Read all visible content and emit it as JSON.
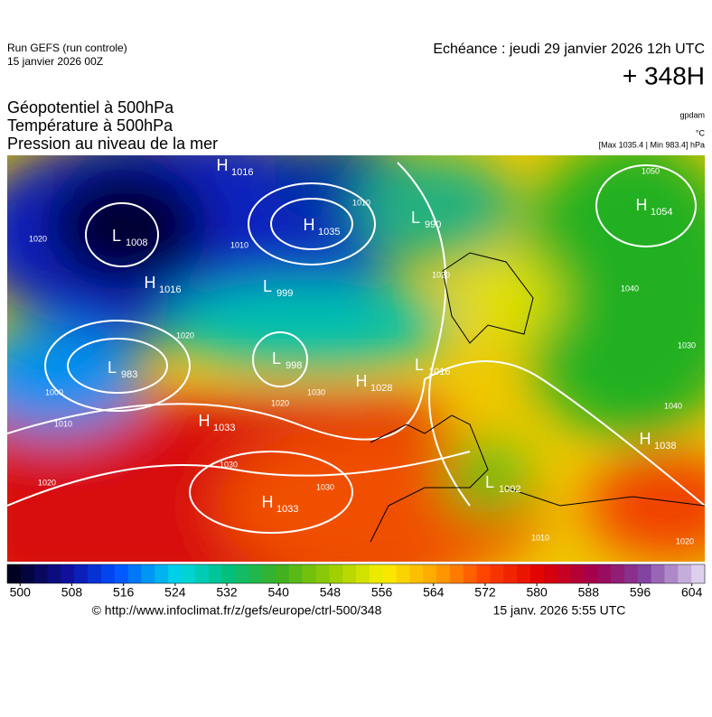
{
  "header": {
    "run": "Run GEFS (run controle)",
    "run_date": "15 janvier 2026 00Z",
    "echeance": "Echéance : jeudi 29 janvier 2026 12h UTC",
    "lead": "+ 348H"
  },
  "titles": [
    "Géopotentiel à 500hPa",
    "Température à 500hPa",
    "Pression au niveau de la mer"
  ],
  "units": {
    "geopotential": "gpdam",
    "temperature": "°C",
    "pressure": "[Max 1035.4 | Min 983.4] hPa"
  },
  "centers": [
    {
      "letter": "H",
      "value": 1016
    },
    {
      "letter": "L",
      "value": 1008
    },
    {
      "letter": "H",
      "value": 1016
    },
    {
      "letter": "H",
      "value": 1035
    },
    {
      "letter": "L",
      "value": 999
    },
    {
      "letter": "L",
      "value": 990
    },
    {
      "letter": "H",
      "value": 1054
    },
    {
      "letter": "L",
      "value": 998
    },
    {
      "letter": "L",
      "value": 983
    },
    {
      "letter": "H",
      "value": 1028
    },
    {
      "letter": "L",
      "value": 1016
    },
    {
      "letter": "H",
      "value": 1033
    },
    {
      "letter": "H",
      "value": 1033
    },
    {
      "letter": "H",
      "value": 1038
    },
    {
      "letter": "L",
      "value": 1002
    }
  ],
  "isobar_labels": [
    1020,
    1010,
    1010,
    1020,
    1030,
    1020,
    1030,
    1020,
    1050,
    1040,
    1030,
    1040,
    1020,
    1010,
    1010,
    1000,
    1020,
    1030
  ],
  "colorbar": {
    "lim": [
      498,
      606
    ],
    "ticks": [
      500,
      508,
      516,
      524,
      532,
      540,
      548,
      556,
      564,
      572,
      580,
      588,
      596,
      604
    ]
  },
  "footer": {
    "source": "© http://www.infoclimat.fr/z/gefs/europe/ctrl-500/348",
    "generated": "15 janv. 2026  5:55 UTC"
  }
}
